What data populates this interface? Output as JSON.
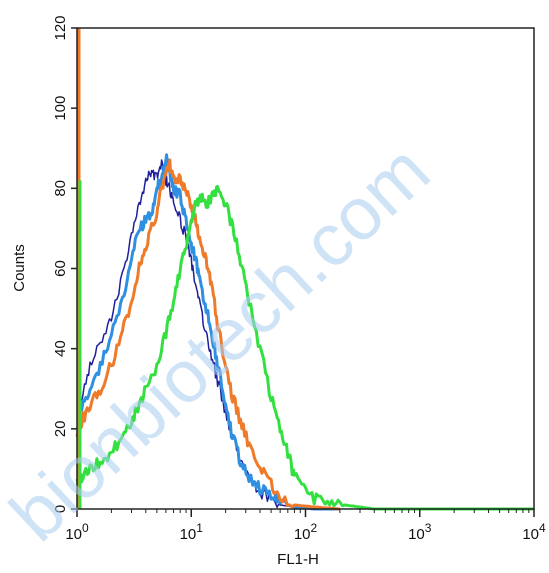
{
  "watermark": "bionbiotech.com",
  "chart_data": {
    "type": "line",
    "title": "",
    "xlabel": "FL1-H",
    "ylabel": "Counts",
    "x_scale": "log",
    "xlim": [
      1,
      10000
    ],
    "ylim": [
      0,
      120
    ],
    "x_ticks": [
      {
        "value": 1,
        "base": "10",
        "exp": "0"
      },
      {
        "value": 10,
        "base": "10",
        "exp": "1"
      },
      {
        "value": 100,
        "base": "10",
        "exp": "2"
      },
      {
        "value": 1000,
        "base": "10",
        "exp": "3"
      },
      {
        "value": 10000,
        "base": "10",
        "exp": "4"
      }
    ],
    "y_ticks": [
      "0",
      "20",
      "40",
      "60",
      "80",
      "100",
      "120"
    ],
    "grid": false,
    "series": [
      {
        "color": "#1f1f9a",
        "x": [
          1,
          1.1,
          1.3,
          1.6,
          2,
          2.5,
          3,
          3.5,
          4,
          4.5,
          5,
          5.5,
          6,
          6.5,
          7,
          8,
          9,
          10,
          11,
          12,
          13.5,
          15,
          17,
          20,
          23,
          27,
          32,
          40,
          50,
          60,
          80,
          120,
          200
        ],
        "y": [
          20,
          28,
          36,
          42,
          48,
          58,
          68,
          76,
          82,
          84,
          83,
          86,
          82,
          80,
          76,
          72,
          68,
          62,
          56,
          50,
          44,
          38,
          32,
          24,
          18,
          12,
          8,
          4,
          2,
          1,
          0.5,
          0,
          0
        ]
      },
      {
        "color": "#2f8fe0",
        "x": [
          1,
          1.1,
          1.3,
          1.6,
          2,
          2.5,
          3,
          3.5,
          4,
          4.5,
          5,
          5.5,
          6,
          6.5,
          7,
          8,
          9,
          10,
          11,
          12,
          13.5,
          15,
          17,
          20,
          23,
          27,
          32,
          40,
          50,
          60,
          80,
          120,
          200
        ],
        "y": [
          22,
          26,
          30,
          36,
          44,
          52,
          62,
          70,
          72,
          74,
          80,
          82,
          88,
          84,
          80,
          78,
          72,
          66,
          62,
          56,
          50,
          44,
          36,
          26,
          18,
          12,
          8,
          5,
          3,
          1.5,
          0.5,
          0,
          0
        ]
      },
      {
        "color": "#ee7a2a",
        "x": [
          1,
          1.1,
          1.3,
          1.6,
          2,
          2.5,
          3,
          3.5,
          4,
          4.5,
          5,
          5.5,
          6,
          6.5,
          7,
          8,
          9,
          10,
          11,
          12,
          13.5,
          15,
          17,
          20,
          23,
          27,
          32,
          40,
          50,
          60,
          80,
          120,
          200
        ],
        "y": [
          18,
          22,
          26,
          30,
          36,
          44,
          52,
          60,
          66,
          70,
          74,
          80,
          84,
          86,
          82,
          82,
          80,
          76,
          72,
          66,
          62,
          56,
          46,
          36,
          28,
          22,
          16,
          10,
          6,
          3,
          1,
          0.5,
          0
        ]
      },
      {
        "color": "#33e040",
        "x": [
          1,
          1.1,
          1.3,
          1.6,
          2,
          2.5,
          3,
          3.5,
          4,
          5,
          6,
          7,
          8,
          9,
          10,
          11,
          12,
          13.5,
          15,
          17,
          20,
          23,
          27,
          32,
          40,
          50,
          60,
          70,
          80,
          100,
          130,
          170,
          220,
          300,
          400,
          1000,
          3000,
          10000
        ],
        "y": [
          6,
          8,
          10,
          12,
          14,
          18,
          22,
          26,
          30,
          36,
          44,
          52,
          60,
          66,
          72,
          76,
          78,
          76,
          78,
          80,
          76,
          70,
          62,
          52,
          40,
          28,
          20,
          14,
          8,
          4,
          2,
          1.5,
          1,
          0.5,
          0,
          0,
          0,
          0
        ]
      }
    ],
    "y_axis_spikes": [
      {
        "color": "#ee7a2a",
        "x": 1,
        "y_top": 120
      },
      {
        "color": "#33e040",
        "x": 1,
        "y_top": 82
      }
    ]
  }
}
